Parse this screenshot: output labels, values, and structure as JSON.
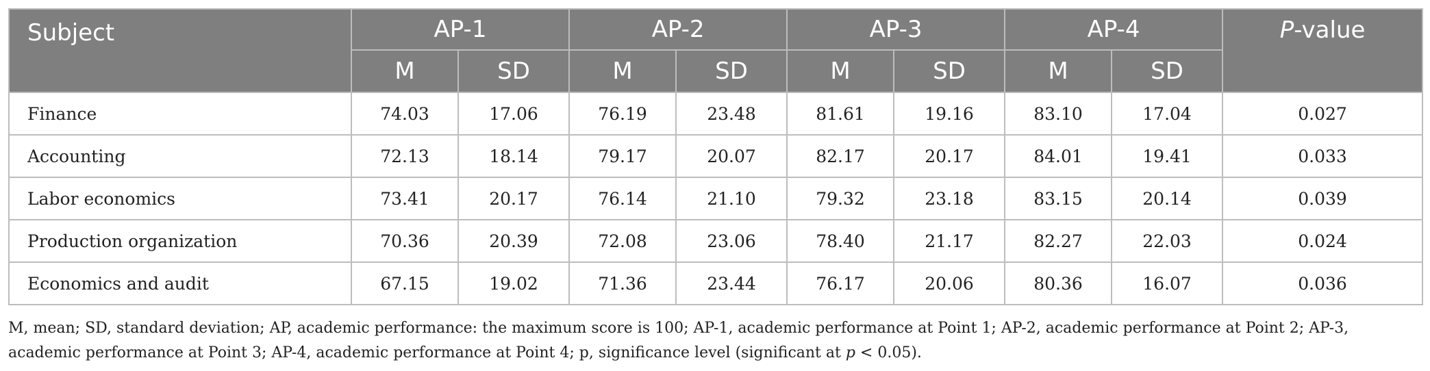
{
  "header": {
    "subject": "Subject",
    "groups": [
      "AP-1",
      "AP-2",
      "AP-3",
      "AP-4"
    ],
    "pvalue_italic": "P",
    "pvalue_rest": "-value",
    "sub": [
      "M",
      "SD",
      "M",
      "SD",
      "M",
      "SD",
      "M",
      "SD"
    ]
  },
  "rows": [
    {
      "subject": "Finance",
      "vals": [
        "74.03",
        "17.06",
        "76.19",
        "23.48",
        "81.61",
        "19.16",
        "83.10",
        "17.04"
      ],
      "p": "0.027"
    },
    {
      "subject": "Accounting",
      "vals": [
        "72.13",
        "18.14",
        "79.17",
        "20.07",
        "82.17",
        "20.17",
        "84.01",
        "19.41"
      ],
      "p": "0.033"
    },
    {
      "subject": "Labor economics",
      "vals": [
        "73.41",
        "20.17",
        "76.14",
        "21.10",
        "79.32",
        "23.18",
        "83.15",
        "20.14"
      ],
      "p": "0.039"
    },
    {
      "subject": "Production organization",
      "vals": [
        "70.36",
        "20.39",
        "72.08",
        "23.06",
        "78.40",
        "21.17",
        "82.27",
        "22.03"
      ],
      "p": "0.024"
    },
    {
      "subject": "Economics and audit",
      "vals": [
        "67.15",
        "19.02",
        "71.36",
        "23.44",
        "76.17",
        "20.06",
        "80.36",
        "16.07"
      ],
      "p": "0.036"
    }
  ],
  "footnote": {
    "text_before": "M, mean; SD, standard deviation; AP, academic performance: the maximum score is 100; AP-1, academic performance at Point 1; AP-2, academic performance at Point 2; AP-3, academic performance at Point 3; AP-4, academic performance at Point 4; p, significance level (significant at ",
    "italic_p": "p",
    "text_after": " < 0.05)."
  }
}
